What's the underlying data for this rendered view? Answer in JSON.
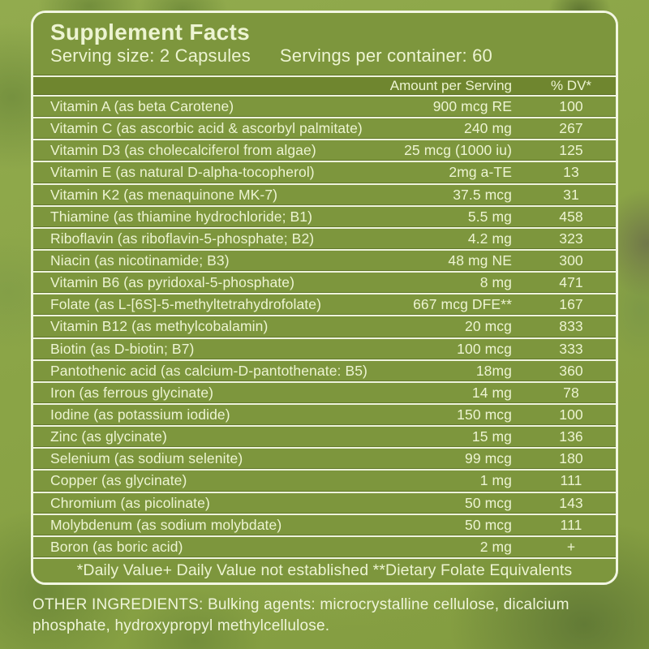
{
  "panel": {
    "title": "Supplement Facts",
    "serving_size": "Serving size: 2 Capsules",
    "servings_per_container": "Servings per container: 60",
    "columns": {
      "amount": "Amount per Serving",
      "dv": "% DV*"
    },
    "rows": [
      {
        "name": "Vitamin A (as beta Carotene)",
        "amount": "900 mcg RE",
        "dv": "100"
      },
      {
        "name": "Vitamin C (as ascorbic acid & ascorbyl palmitate)",
        "amount": "240 mg",
        "dv": "267"
      },
      {
        "name": "Vitamin D3 (as cholecalciferol from algae)",
        "amount": "25 mcg (1000 iu)",
        "dv": "125"
      },
      {
        "name": "Vitamin E (as natural D-alpha-tocopherol)",
        "amount": "2mg a-TE",
        "dv": "13"
      },
      {
        "name": "Vitamin K2 (as menaquinone MK-7)",
        "amount": "37.5 mcg",
        "dv": "31"
      },
      {
        "name": "Thiamine (as thiamine hydrochloride; B1)",
        "amount": "5.5 mg",
        "dv": "458"
      },
      {
        "name": "Riboflavin (as riboflavin-5-phosphate; B2)",
        "amount": "4.2 mg",
        "dv": "323"
      },
      {
        "name": "Niacin (as nicotinamide; B3)",
        "amount": "48 mg NE",
        "dv": "300"
      },
      {
        "name": "Vitamin B6 (as pyridoxal-5-phosphate)",
        "amount": "8 mg",
        "dv": "471"
      },
      {
        "name": "Folate (as L-[6S]-5-methyltetrahydrofolate)",
        "amount": "667 mcg DFE**",
        "dv": "167"
      },
      {
        "name": "Vitamin B12 (as methylcobalamin)",
        "amount": "20 mcg",
        "dv": "833"
      },
      {
        "name": "Biotin (as D-biotin; B7)",
        "amount": "100 mcg",
        "dv": "333"
      },
      {
        "name": "Pantothenic acid (as calcium-D-pantothenate: B5)",
        "amount": "18mg",
        "dv": "360"
      },
      {
        "name": "Iron (as ferrous glycinate)",
        "amount": "14 mg",
        "dv": "78"
      },
      {
        "name": "Iodine (as potassium iodide)",
        "amount": "150 mcg",
        "dv": "100"
      },
      {
        "name": "Zinc (as glycinate)",
        "amount": "15 mg",
        "dv": "136"
      },
      {
        "name": "Selenium (as sodium selenite)",
        "amount": "99 mcg",
        "dv": "180"
      },
      {
        "name": "Copper (as glycinate)",
        "amount": "1 mg",
        "dv": "111"
      },
      {
        "name": "Chromium (as picolinate)",
        "amount": "50 mcg",
        "dv": "143"
      },
      {
        "name": "Molybdenum (as sodium molybdate)",
        "amount": "50 mcg",
        "dv": "111"
      },
      {
        "name": "Boron (as boric acid)",
        "amount": "2 mg",
        "dv": "+"
      }
    ],
    "footnote": "*Daily Value+ Daily Value not established **Dietary Folate Equivalents"
  },
  "other_ingredients": "OTHER INGREDIENTS: Bulking agents: microcrystalline cellulose, dicalcium phosphate, hydroxypropyl methylcellulose.",
  "colors": {
    "background_green": "#8ba449",
    "panel_row_green": "#7d963d",
    "column_header_green": "#6f862f",
    "border_cream": "#f2f6e2",
    "text_cream": "#edf4d2"
  }
}
